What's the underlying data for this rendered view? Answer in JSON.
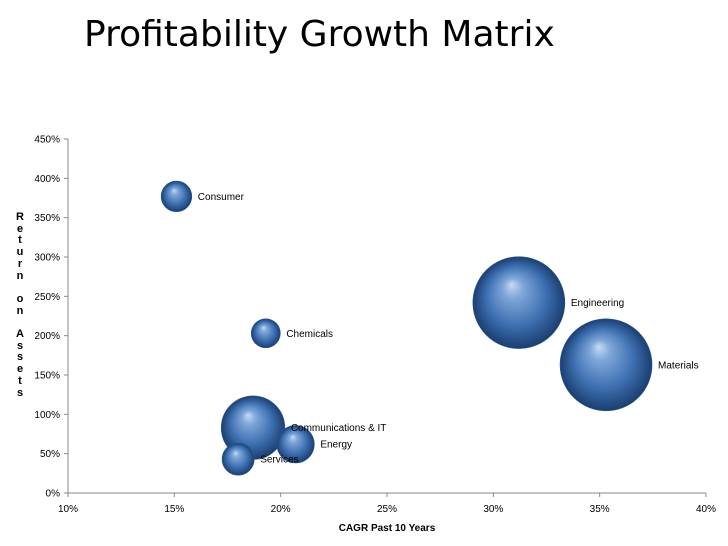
{
  "slide": {
    "title": "Profitability Growth Matrix"
  },
  "chart_data": {
    "type": "bubble",
    "xlabel": "CAGR  Past 10 Years",
    "ylabel": "Return on Assets",
    "xlim": [
      0.1,
      0.4
    ],
    "ylim": [
      0,
      4.5
    ],
    "xticks": [
      0.1,
      0.15,
      0.2,
      0.25,
      0.3,
      0.35,
      0.4
    ],
    "xtick_labels": [
      "10%",
      "15%",
      "20%",
      "25%",
      "30%",
      "35%",
      "40%"
    ],
    "yticks": [
      0,
      0.5,
      1.0,
      1.5,
      2.0,
      2.5,
      3.0,
      3.5,
      4.0,
      4.5
    ],
    "ytick_labels": [
      "0%",
      "50%",
      "100%",
      "150%",
      "200%",
      "250%",
      "300%",
      "350%",
      "400%",
      "450%"
    ],
    "grid": false,
    "legend": "none",
    "bubble_color": "#3d6fb0",
    "series": [
      {
        "label": "Consumer",
        "x": 0.151,
        "y": 3.77,
        "size": 1.0
      },
      {
        "label": "Chemicals",
        "x": 0.193,
        "y": 2.03,
        "size": 0.9
      },
      {
        "label": "Engineering",
        "x": 0.312,
        "y": 2.42,
        "size": 9.0
      },
      {
        "label": "Materials",
        "x": 0.353,
        "y": 1.63,
        "size": 9.0
      },
      {
        "label": "Communications & IT",
        "x": 0.187,
        "y": 0.83,
        "size": 4.3
      },
      {
        "label": "Energy",
        "x": 0.207,
        "y": 0.62,
        "size": 1.5
      },
      {
        "label": "Services",
        "x": 0.18,
        "y": 0.43,
        "size": 1.1
      }
    ]
  }
}
